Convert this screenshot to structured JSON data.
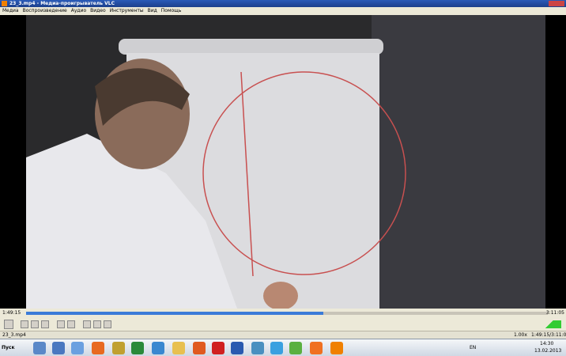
{
  "window": {
    "title": "23_3.mp4 - Медиа-проигрыватель VLC"
  },
  "menu": [
    "Медиа",
    "Воспроизведение",
    "Аудио",
    "Видео",
    "Инструменты",
    "Вид",
    "Помощь"
  ],
  "player": {
    "elapsed": "1:49:15",
    "total": "3:11:05"
  },
  "status": {
    "file": "23_3.mp4",
    "speed": "1.00x",
    "time": "1:49:15/3:11:05"
  },
  "taskbar": {
    "start": "Пуск",
    "language": "EN",
    "time": "14:30",
    "date": "13.02.2013"
  }
}
